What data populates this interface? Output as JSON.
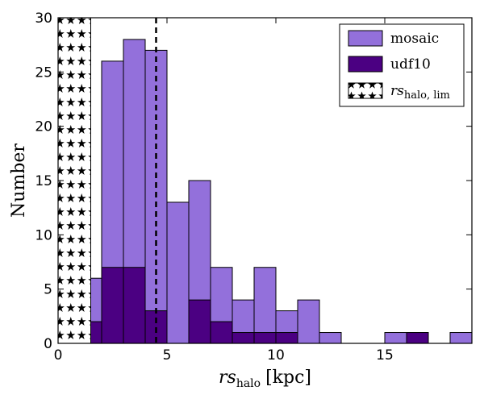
{
  "chart_data": {
    "type": "bar",
    "xlabel_main": "rs",
    "xlabel_sub": "halo",
    "xlabel_unit": "[kpc]",
    "ylabel": "Number",
    "xlim": [
      0,
      19
    ],
    "ylim": [
      0,
      30
    ],
    "bin_width": 1,
    "xticks": [
      "0",
      "5",
      "10",
      "15"
    ],
    "xtick_values": [
      0,
      5,
      10,
      15
    ],
    "yticks": [
      "0",
      "5",
      "10",
      "15",
      "20",
      "25",
      "30"
    ],
    "ytick_values": [
      0,
      5,
      10,
      15,
      20,
      25,
      30
    ],
    "colors": {
      "mosaic": "#9370db",
      "udf10": "#4b0082",
      "edge": "#000000"
    },
    "series": [
      {
        "name": "mosaic",
        "bin_starts": [
          0,
          1,
          2,
          3,
          4,
          5,
          6,
          7,
          8,
          9,
          10,
          11,
          12,
          13,
          14,
          15,
          16,
          17,
          18
        ],
        "values": [
          1,
          6,
          26,
          28,
          27,
          13,
          15,
          7,
          4,
          7,
          3,
          4,
          1,
          0,
          0,
          1,
          1,
          0,
          1
        ]
      },
      {
        "name": "udf10",
        "bin_starts": [
          0,
          1,
          2,
          3,
          4,
          5,
          6,
          7,
          8,
          9,
          10,
          11,
          12,
          13,
          14,
          15,
          16,
          17,
          18
        ],
        "values": [
          0,
          2,
          7,
          7,
          3,
          0,
          4,
          2,
          1,
          1,
          1,
          0,
          0,
          0,
          0,
          0,
          1,
          0,
          0
        ]
      }
    ],
    "shaded_region": {
      "x0": 0,
      "x1": 1.5,
      "label_main": "rs",
      "label_sub": "halo, lim",
      "pattern": "stars"
    },
    "vline": {
      "x": 4.5,
      "style": "dashed"
    },
    "legend_position": "top-right",
    "grid": false
  }
}
